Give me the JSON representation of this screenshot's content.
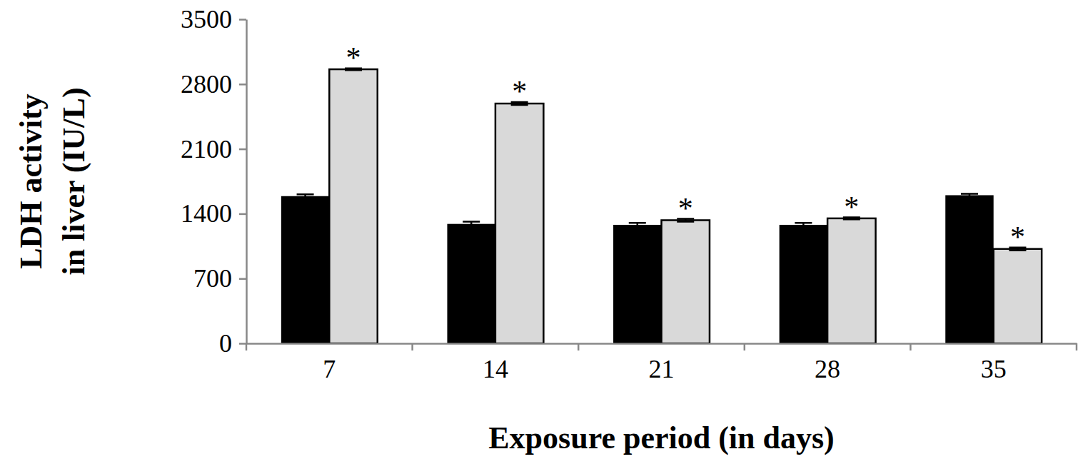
{
  "chart_data": {
    "type": "bar",
    "x_label": "Exposure period (in days)",
    "y_label": [
      "LDH activity",
      "in liver (IU/L)"
    ],
    "categories": [
      "7",
      "14",
      "21",
      "28",
      "35"
    ],
    "series": [
      {
        "color": "#000000",
        "values": [
          1590,
          1290,
          1280,
          1280,
          1600
        ],
        "errors": [
          20,
          25,
          20,
          20,
          15
        ]
      },
      {
        "color": "#d9d9d9",
        "values": [
          2960,
          2590,
          1330,
          1350,
          1020
        ],
        "errors": [
          10,
          15,
          15,
          10,
          15
        ],
        "annotations": [
          "*",
          "*",
          "*",
          "*",
          "*"
        ]
      }
    ],
    "ylim": [
      0,
      3500
    ],
    "yticks": [
      0,
      700,
      1400,
      2100,
      2800,
      3500
    ],
    "grid": false,
    "legend": "none"
  }
}
